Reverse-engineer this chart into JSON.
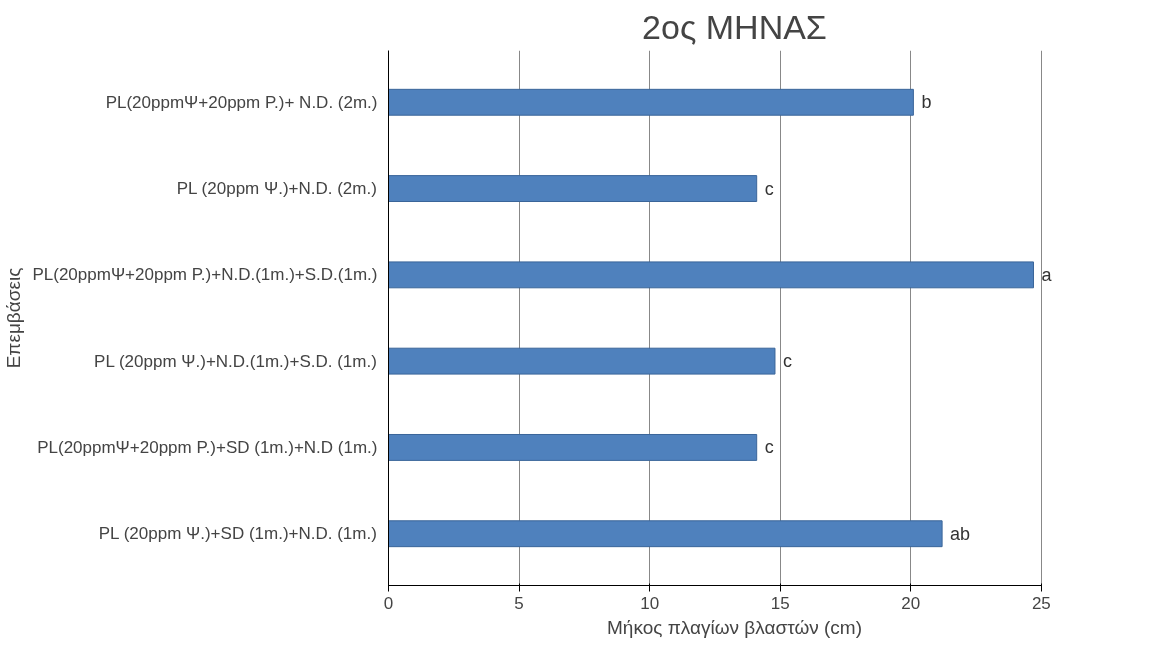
{
  "chart_data": {
    "type": "bar",
    "orientation": "horizontal",
    "title": "2ος ΜΗΝΑΣ",
    "xlabel": "Μήκος πλαγίων βλαστών (cm)",
    "ylabel": "Επεμβάσεις",
    "categories": [
      "PL(20ppmΨ+20ppm P.)+ N.D. (2m.)",
      "PL (20ppm Ψ.)+N.D. (2m.)",
      "PL(20ppmΨ+20ppm P.)+N.D.(1m.)+S.D.(1m.)",
      "PL (20ppm Ψ.)+N.D.(1m.)+S.D. (1m.)",
      "PL(20ppmΨ+20ppm P.)+SD (1m.)+N.D (1m.)",
      "PL (20ppm Ψ.)+SD (1m.)+N.D. (1m.)"
    ],
    "values": [
      20.1,
      14.1,
      24.7,
      14.8,
      14.1,
      21.2
    ],
    "color": "#4f81bd",
    "xlim": [
      0,
      25
    ],
    "xticks": [
      0,
      5,
      10,
      15,
      20,
      25
    ],
    "grid": "x",
    "annotations": [
      {
        "text": "b",
        "x": 20.1,
        "y": "PL(20ppmΨ+20ppm P.)+ N.D. (2m.)"
      },
      {
        "text": "c",
        "x": 14.1,
        "y": "PL (20ppm Ψ.)+N.D. (2m.)"
      },
      {
        "text": "a",
        "x": 24.7,
        "y": "PL(20ppmΨ+20ppm P.)+N.D.(1m.)+S.D.(1m.)"
      },
      {
        "text": "c",
        "x": 14.8,
        "y": "PL (20ppm Ψ.)+N.D.(1m.)+S.D. (1m.)"
      },
      {
        "text": "c",
        "x": 14.1,
        "y": "PL(20ppmΨ+20ppm P.)+SD (1m.)+N.D (1m.)"
      },
      {
        "text": "ab",
        "x": 21.2,
        "y": "PL (20ppm Ψ.)+SD (1m.)+N.D. (1m.)"
      }
    ]
  }
}
